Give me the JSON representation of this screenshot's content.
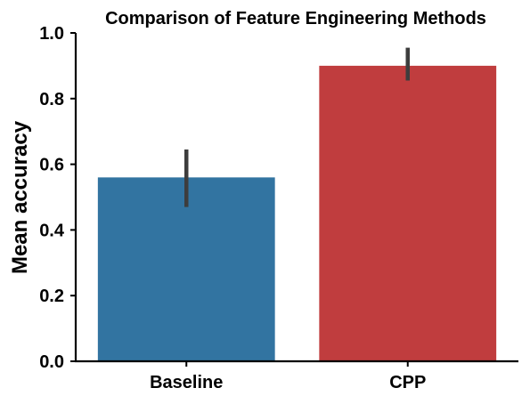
{
  "chart_data": {
    "type": "bar",
    "title": "Comparison of Feature Engineering Methods",
    "xlabel": "",
    "ylabel": "Mean accuracy",
    "categories": [
      "Baseline",
      "CPP"
    ],
    "values": [
      0.56,
      0.9
    ],
    "error_low": [
      0.47,
      0.855
    ],
    "error_high": [
      0.645,
      0.955
    ],
    "colors": [
      "#3274a1",
      "#c03d3e"
    ],
    "error_color": "#3d3d3d",
    "ylim": [
      0.0,
      1.0
    ],
    "yticks": [
      0.0,
      0.2,
      0.4,
      0.6,
      0.8,
      1.0
    ],
    "ytick_labels": [
      "0.0",
      "0.2",
      "0.4",
      "0.6",
      "0.8",
      "1.0"
    ],
    "grid": false,
    "legend": "none"
  }
}
